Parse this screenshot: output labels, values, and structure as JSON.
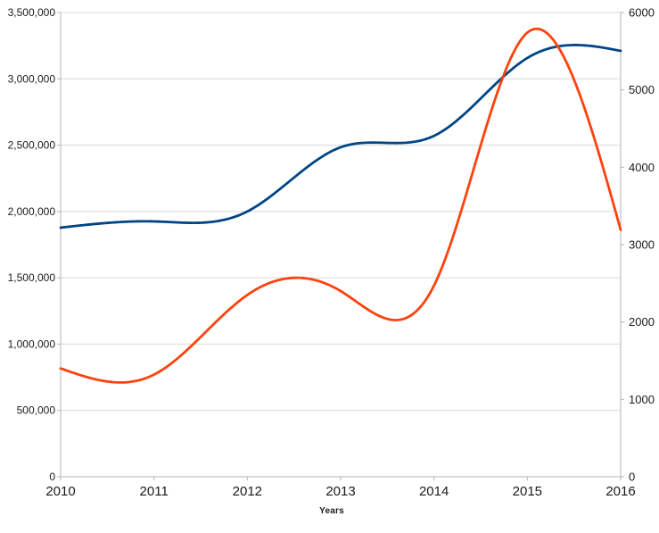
{
  "chart_data": {
    "type": "line",
    "title": "",
    "xlabel": "Years",
    "ylabel_left": "",
    "ylabel_right": "",
    "smooth": true,
    "grid": "horizontal",
    "legend": "none",
    "background": "#ffffff",
    "x": [
      2010,
      2011,
      2012,
      2013,
      2014,
      2015,
      2016
    ],
    "x_tick_labels": [
      "2010",
      "2011",
      "2012",
      "2013",
      "2014",
      "2015",
      "2016"
    ],
    "series": [
      {
        "name": "blue-series",
        "axis": "left",
        "color": "#004586",
        "values": [
          1878000,
          1925000,
          2000000,
          2484000,
          2570000,
          3157000,
          3211000
        ]
      },
      {
        "name": "red-series",
        "axis": "right",
        "color": "#ff420e",
        "values": [
          1400,
          1320,
          2350,
          2400,
          2470,
          5740,
          3190
        ]
      }
    ],
    "left_axis": {
      "min": 0,
      "max": 3500000,
      "step": 500000,
      "tick_labels": [
        "3,500,000",
        "3,000,000",
        "2,500,000",
        "2,000,000",
        "1,500,000",
        "1,000,000",
        "500,000",
        "0"
      ]
    },
    "right_axis": {
      "min": 0,
      "max": 6000,
      "step": 1000,
      "tick_labels": [
        "6000",
        "5000",
        "4000",
        "3000",
        "2000",
        "1000",
        "0"
      ]
    },
    "colors": {
      "gridline": "#d9d9d9",
      "axis_line": "#b3b3b3",
      "tick_text": "#1a1a1a"
    }
  }
}
